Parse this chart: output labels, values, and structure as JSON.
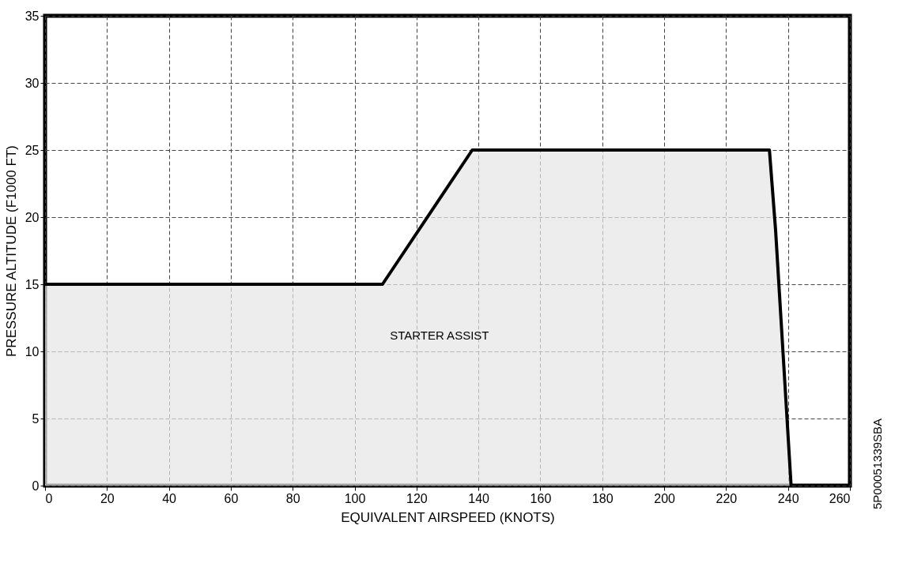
{
  "chart_data": {
    "type": "area",
    "xlabel": "EQUIVALENT AIRSPEED (KNOTS)",
    "ylabel": "PRESSURE ALTITUDE (F1000 FT)",
    "x": [
      0,
      109,
      138,
      234,
      236,
      241
    ],
    "values": [
      15,
      15,
      25,
      25,
      19,
      0
    ],
    "color": "#e6e6e6",
    "xlim": [
      0,
      260
    ],
    "xticks": [
      0,
      20,
      40,
      60,
      80,
      100,
      120,
      140,
      160,
      180,
      200,
      220,
      240,
      260
    ],
    "ylim": [
      0,
      35
    ],
    "yticks": [
      0,
      5,
      10,
      15,
      20,
      25,
      30,
      35
    ],
    "grid": true,
    "annotations": [
      "STARTER ASSIST",
      "5P00051339SBA"
    ]
  }
}
